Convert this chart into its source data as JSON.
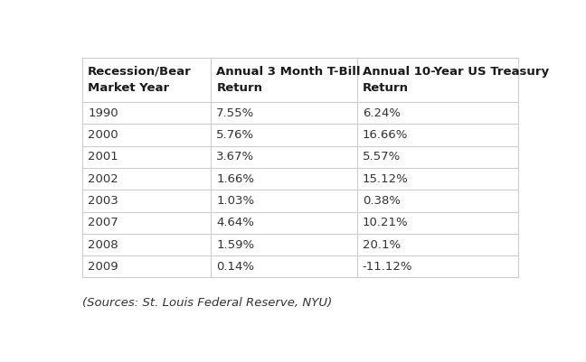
{
  "col_headers": [
    "Recession/Bear\nMarket Year",
    "Annual 3 Month T-Bill\nReturn",
    "Annual 10-Year US Treasury\nReturn"
  ],
  "rows": [
    [
      "1990",
      "7.55%",
      "6.24%"
    ],
    [
      "2000",
      "5.76%",
      "16.66%"
    ],
    [
      "2001",
      "3.67%",
      "5.57%"
    ],
    [
      "2002",
      "1.66%",
      "15.12%"
    ],
    [
      "2003",
      "1.03%",
      "0.38%"
    ],
    [
      "2007",
      "4.64%",
      "10.21%"
    ],
    [
      "2008",
      "1.59%",
      "20.1%"
    ],
    [
      "2009",
      "0.14%",
      "-11.12%"
    ]
  ],
  "footer": "(Sources: St. Louis Federal Reserve, NYU)",
  "bg_color": "#ffffff",
  "header_text_color": "#1a1a1a",
  "row_text_color": "#333333",
  "border_color": "#cccccc",
  "header_font_size": 9.5,
  "row_font_size": 9.5,
  "footer_font_size": 9.5
}
